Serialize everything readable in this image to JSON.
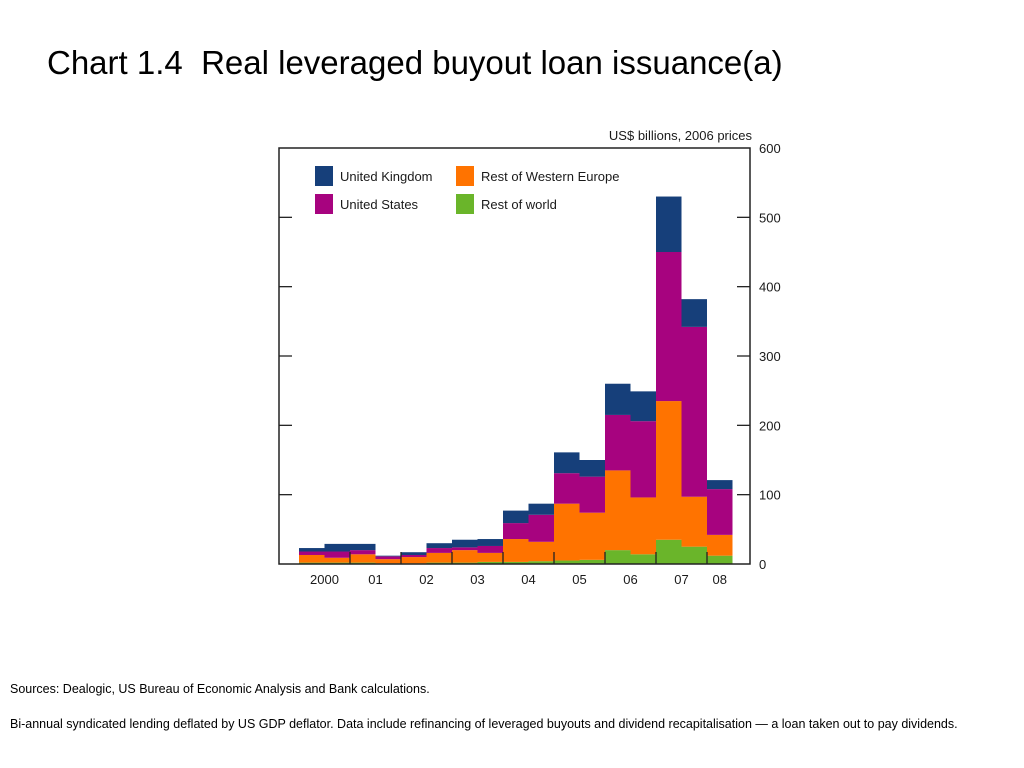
{
  "title": "Chart 1.4  Real leveraged buyout loan issuance(a)",
  "colors": {
    "United Kingdom": "#163f7a",
    "United States": "#a7037f",
    "Rest of Western Europe": "#ff7300",
    "Rest of world": "#6ab52a",
    "frame": "#222222"
  },
  "chart_data": {
    "type": "bar",
    "stacked": true,
    "title": "",
    "unit_label": "US$ billions, 2006 prices",
    "xlabel": "",
    "ylabel": "",
    "ylim": [
      0,
      600
    ],
    "yticks": [
      0,
      100,
      200,
      300,
      400,
      500,
      600
    ],
    "y_axis_side": "right",
    "x_tick_labels": [
      "2000",
      "01",
      "02",
      "03",
      "04",
      "05",
      "06",
      "07",
      "08"
    ],
    "categories": [
      "2000 H1",
      "2000 H2",
      "2001 H1",
      "2001 H2",
      "2002 H1",
      "2002 H2",
      "2003 H1",
      "2003 H2",
      "2004 H1",
      "2004 H2",
      "2005 H1",
      "2005 H2",
      "2006 H1",
      "2006 H2",
      "2007 H1",
      "2007 H2",
      "2008 H1"
    ],
    "series": [
      {
        "name": "Rest of world",
        "values": [
          2,
          2,
          2,
          1,
          1,
          2,
          2,
          3,
          3,
          4,
          5,
          6,
          20,
          14,
          35,
          25,
          12
        ]
      },
      {
        "name": "Rest of Western Europe",
        "values": [
          11,
          7,
          12,
          6,
          9,
          14,
          18,
          13,
          33,
          28,
          82,
          68,
          115,
          82,
          200,
          72,
          30
        ]
      },
      {
        "name": "United States",
        "values": [
          5,
          9,
          6,
          4,
          3,
          7,
          4,
          10,
          23,
          39,
          44,
          52,
          80,
          110,
          215,
          245,
          66
        ]
      },
      {
        "name": "United Kingdom",
        "values": [
          5,
          11,
          9,
          1,
          4,
          7,
          11,
          10,
          18,
          16,
          30,
          24,
          45,
          43,
          80,
          40,
          13
        ]
      }
    ],
    "legend": {
      "placement": "top-left",
      "order": [
        "United Kingdom",
        "Rest of Western Europe",
        "United States",
        "Rest of world"
      ]
    },
    "grid": false
  },
  "footer": {
    "sources": "Sources:  Dealogic, US Bureau of Economic Analysis and Bank calculations.",
    "note": "Bi-annual syndicated lending deflated by US GDP deflator.  Data include refinancing of leveraged buyouts and dividend recapitalisation — a loan taken out to pay dividends."
  }
}
